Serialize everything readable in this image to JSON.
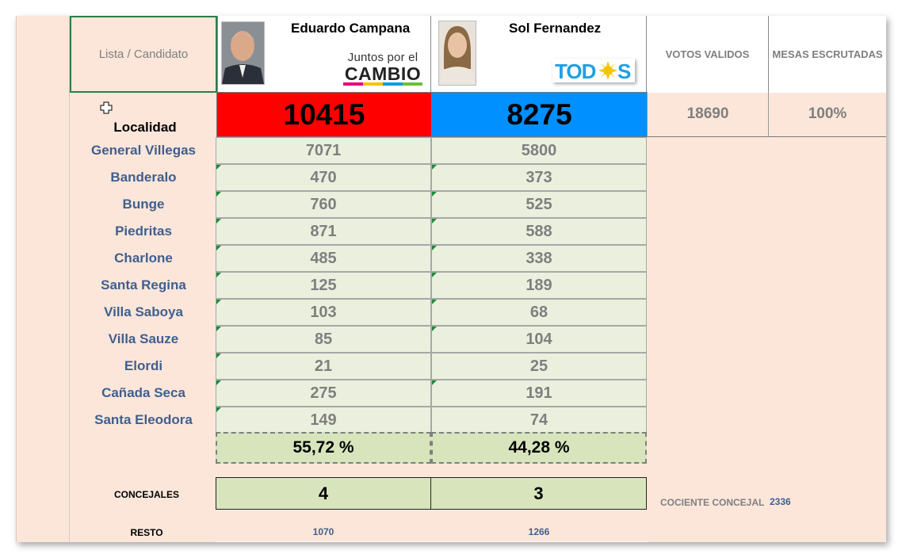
{
  "header": {
    "lista_label": "Lista / Candidato",
    "votos_validos_label": "VOTOS VALIDOS",
    "mesas_escrutadas_label": "MESAS ESCRUTADAS"
  },
  "candidates": [
    {
      "name": "Eduardo Campana",
      "party_logo_line1": "Juntos por el",
      "party_logo_line2": "CAMBIO",
      "total": "10415",
      "total_color": "#ff0000",
      "percent": "55,72  %",
      "concejales": "4",
      "resto": "1070"
    },
    {
      "name": "Sol Fernandez",
      "party_logo_a": "TOD",
      "party_logo_b": "S",
      "total": "8275",
      "total_color": "#0090ff",
      "percent": "44,28  %",
      "concejales": "3",
      "resto": "1266"
    }
  ],
  "summary": {
    "votos_validos": "18690",
    "mesas_escrutadas": "100%"
  },
  "localidad_label": "Localidad",
  "rows": [
    {
      "name": "General Villegas",
      "a": "7071",
      "b": "5800"
    },
    {
      "name": "Banderalo",
      "a": "470",
      "b": "373"
    },
    {
      "name": "Bunge",
      "a": "760",
      "b": "525"
    },
    {
      "name": "Piedritas",
      "a": "871",
      "b": "588"
    },
    {
      "name": "Charlone",
      "a": "485",
      "b": "338"
    },
    {
      "name": "Santa Regina",
      "a": "125",
      "b": "189"
    },
    {
      "name": "Villa Saboya",
      "a": "103",
      "b": "68"
    },
    {
      "name": "Villa Sauze",
      "a": "85",
      "b": "104"
    },
    {
      "name": "Elordi",
      "a": "21",
      "b": "25"
    },
    {
      "name": "Cañada Seca",
      "a": "275",
      "b": "191"
    },
    {
      "name": "Santa Eleodora",
      "a": "149",
      "b": "74"
    }
  ],
  "footer": {
    "concejales_label": "CONCEJALES",
    "resto_label": "RESTO",
    "cociente_label": "COCIENTE CONCEJAL",
    "cociente_value": "2336"
  },
  "icons": {
    "cursor": "cross-cursor-icon"
  }
}
